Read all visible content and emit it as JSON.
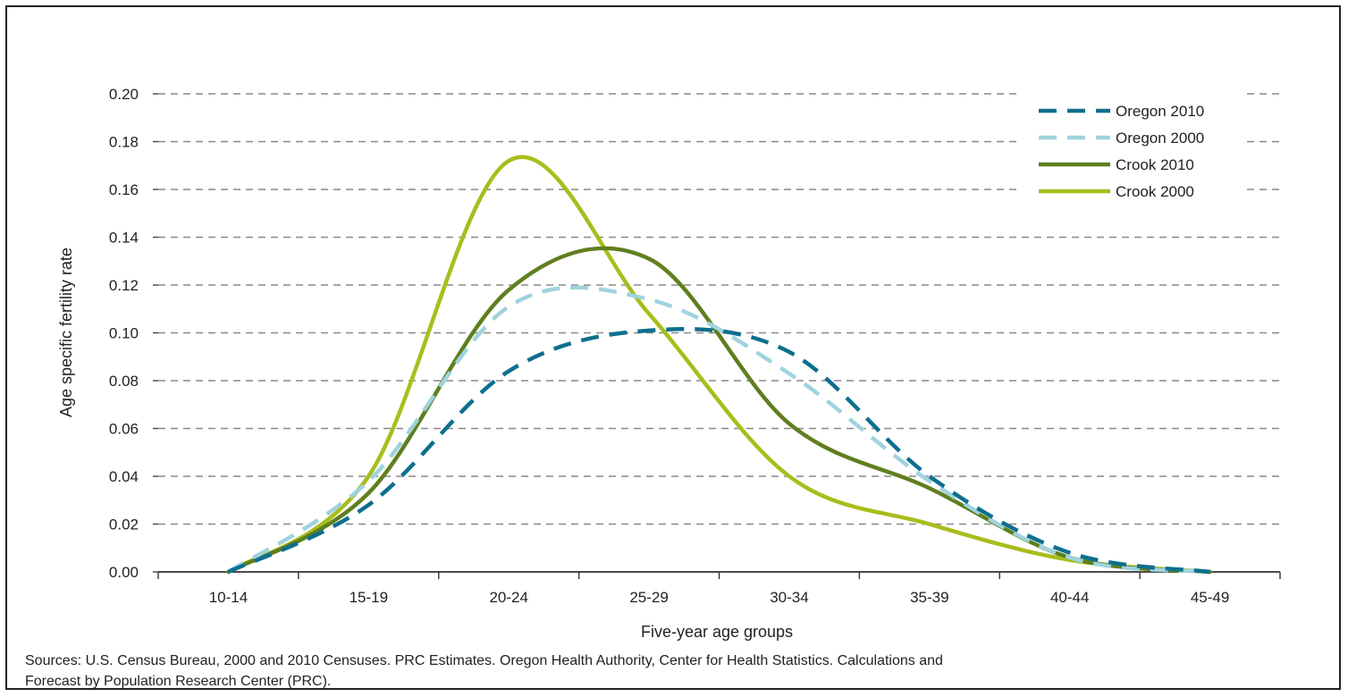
{
  "chart_data": {
    "type": "line",
    "title": "",
    "xlabel": "Five-year age groups",
    "ylabel": "Age specific fertility rate",
    "categories": [
      "10-14",
      "15-19",
      "20-24",
      "25-29",
      "30-34",
      "35-39",
      "40-44",
      "45-49"
    ],
    "ylim": [
      0,
      0.2
    ],
    "yticks": [
      "0.00",
      "0.02",
      "0.04",
      "0.06",
      "0.08",
      "0.10",
      "0.12",
      "0.14",
      "0.16",
      "0.18",
      "0.20"
    ],
    "grid": "horizontal dashed",
    "legend_position": "top-right",
    "series": [
      {
        "name": "Oregon 2010",
        "values": [
          0.0,
          0.028,
          0.084,
          0.101,
          0.092,
          0.04,
          0.008,
          0.0
        ],
        "color": "#0e6f8e",
        "style": "dashed"
      },
      {
        "name": "Oregon 2000",
        "values": [
          0.0,
          0.038,
          0.111,
          0.114,
          0.083,
          0.038,
          0.006,
          0.0
        ],
        "color": "#9fd3de",
        "style": "dashed"
      },
      {
        "name": "Crook 2010",
        "values": [
          0.0,
          0.033,
          0.118,
          0.131,
          0.062,
          0.035,
          0.006,
          0.0
        ],
        "color": "#5f7f1e",
        "style": "solid"
      },
      {
        "name": "Crook 2000",
        "values": [
          0.0,
          0.04,
          0.172,
          0.108,
          0.04,
          0.02,
          0.005,
          0.0
        ],
        "color": "#a9bd1c",
        "style": "solid"
      }
    ]
  },
  "source_note": "Sources: U.S. Census Bureau, 2000 and 2010 Censuses. PRC Estimates. Oregon Health Authority, Center for Health Statistics. Calculations and\nForecast by Population Research Center (PRC)."
}
